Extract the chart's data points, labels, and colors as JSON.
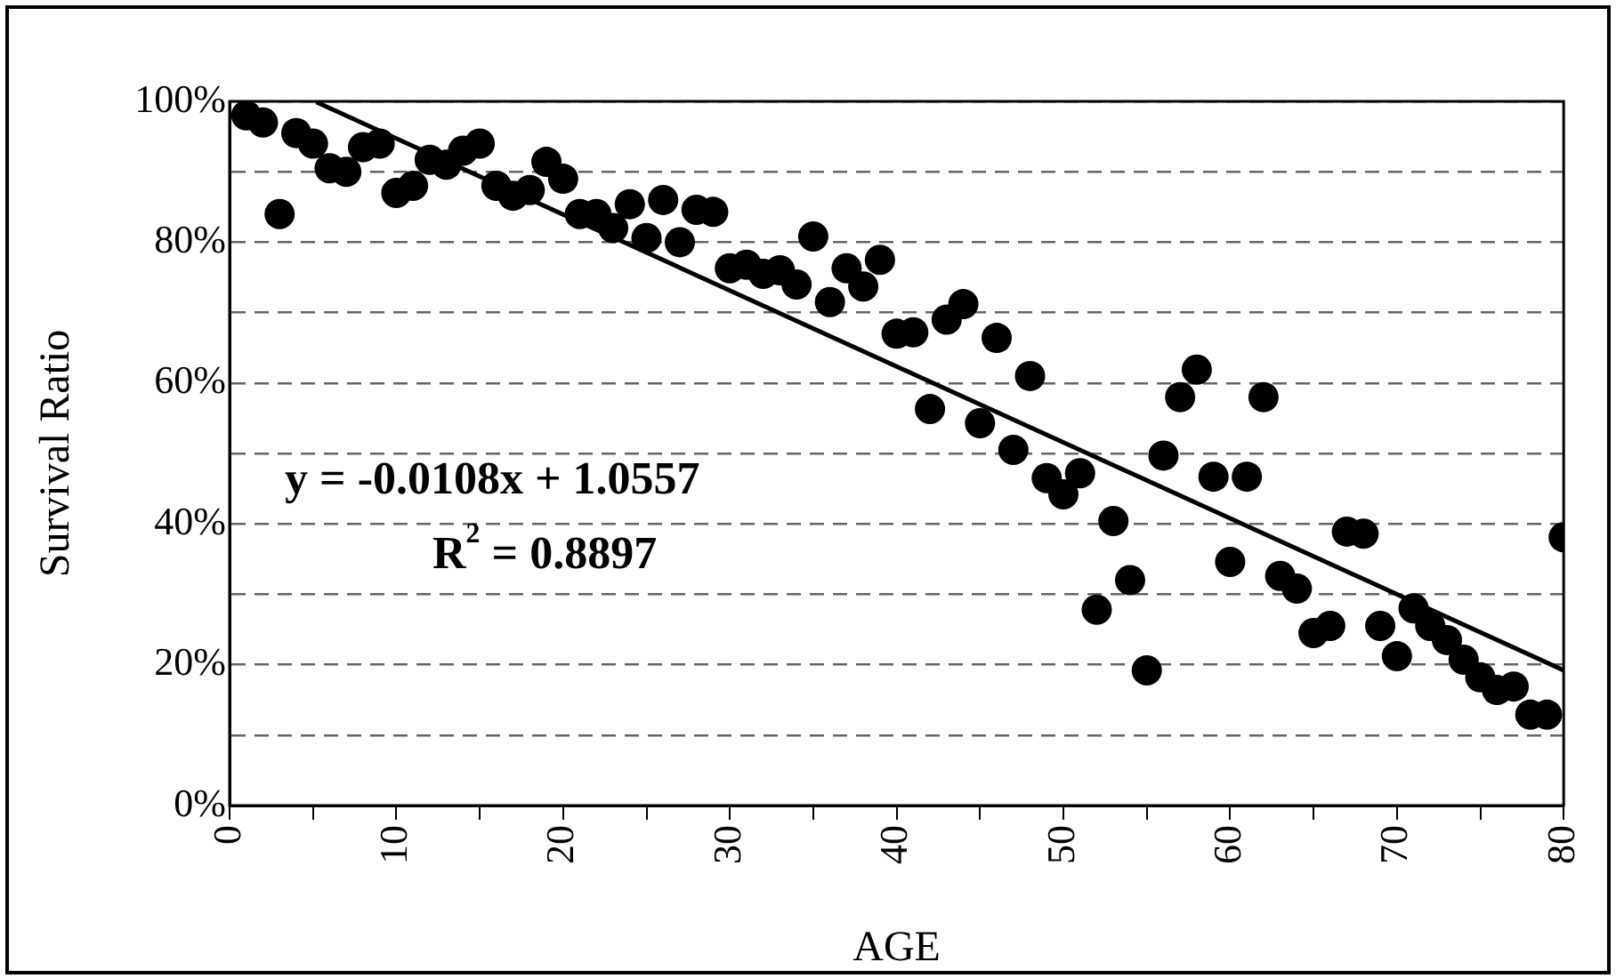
{
  "chart_data": {
    "type": "scatter",
    "xlabel": "AGE",
    "ylabel": "Survival Ratio",
    "x": [
      1,
      2,
      3,
      4,
      5,
      6,
      7,
      8,
      9,
      10,
      11,
      12,
      13,
      14,
      15,
      16,
      17,
      18,
      19,
      20,
      21,
      22,
      23,
      24,
      25,
      26,
      27,
      28,
      29,
      30,
      31,
      32,
      33,
      34,
      35,
      36,
      37,
      38,
      39,
      40,
      41,
      42,
      43,
      44,
      45,
      46,
      47,
      48,
      49,
      50,
      51,
      52,
      53,
      54,
      55,
      56,
      57,
      58,
      59,
      60,
      61,
      62,
      63,
      64,
      65,
      66,
      67,
      68,
      69,
      70,
      71,
      72,
      73,
      74,
      75,
      76,
      77,
      78,
      79,
      80
    ],
    "series": [
      {
        "type": "scatter",
        "color": "#000000",
        "marker": "circle",
        "values": [
          98,
          97,
          84,
          95.5,
          94,
          90.5,
          90,
          93.5,
          94,
          87,
          88,
          91.7,
          91,
          93,
          94,
          88,
          86.6,
          87.4,
          91.4,
          89,
          84,
          84,
          82,
          85.4,
          80.6,
          86,
          80,
          84.6,
          84.3,
          76.3,
          76.8,
          75.5,
          76,
          74,
          80.8,
          71.5,
          76.3,
          73.7,
          77.5,
          67,
          67.2,
          56.3,
          69,
          71.2,
          54.3,
          66.4,
          50.5,
          61,
          46.5,
          44.2,
          47.2,
          27.8,
          40.4,
          32,
          19.2,
          49.7,
          58,
          61.9,
          46.7,
          34.6,
          46.7,
          58,
          32.6,
          30.8,
          24.5,
          25.5,
          38.9,
          38.6,
          25.5,
          21.2,
          28,
          25.5,
          23.5,
          20.7,
          18.2,
          16.4,
          16.9,
          12.9,
          12.9,
          38.1
        ]
      },
      {
        "type": "line",
        "color": "#000000",
        "marker": "none",
        "line_style": "solid",
        "x": [
          5.2,
          80
        ],
        "values": [
          99.9,
          19.2
        ]
      }
    ],
    "xlim": [
      0,
      80
    ],
    "xticks": [
      0,
      {
        "value": 5,
        "label": null
      },
      10,
      {
        "value": 15,
        "label": null
      },
      20,
      {
        "value": 25,
        "label": null
      },
      30,
      {
        "value": 35,
        "label": null
      },
      40,
      {
        "value": 45,
        "label": null
      },
      50,
      {
        "value": 55,
        "label": null
      },
      60,
      {
        "value": 65,
        "label": null
      },
      70,
      {
        "value": 75,
        "label": null
      },
      80
    ],
    "ylim": [
      0,
      100
    ],
    "yticks": [
      {
        "value": 0,
        "label": "0%"
      },
      {
        "value": 10,
        "label": null
      },
      {
        "value": 20,
        "label": "20%"
      },
      {
        "value": 30,
        "label": null
      },
      {
        "value": 40,
        "label": "40%"
      },
      {
        "value": 50,
        "label": null
      },
      {
        "value": 60,
        "label": "60%"
      },
      {
        "value": 70,
        "label": null
      },
      {
        "value": 80,
        "label": "80%"
      },
      {
        "value": 90,
        "label": null
      },
      {
        "value": 100,
        "label": "100%"
      }
    ],
    "grid": "y",
    "legend": false,
    "annotations": [
      "y = -0.0108x + 1.0557",
      "R$^{2}$ = 0.8897"
    ]
  }
}
